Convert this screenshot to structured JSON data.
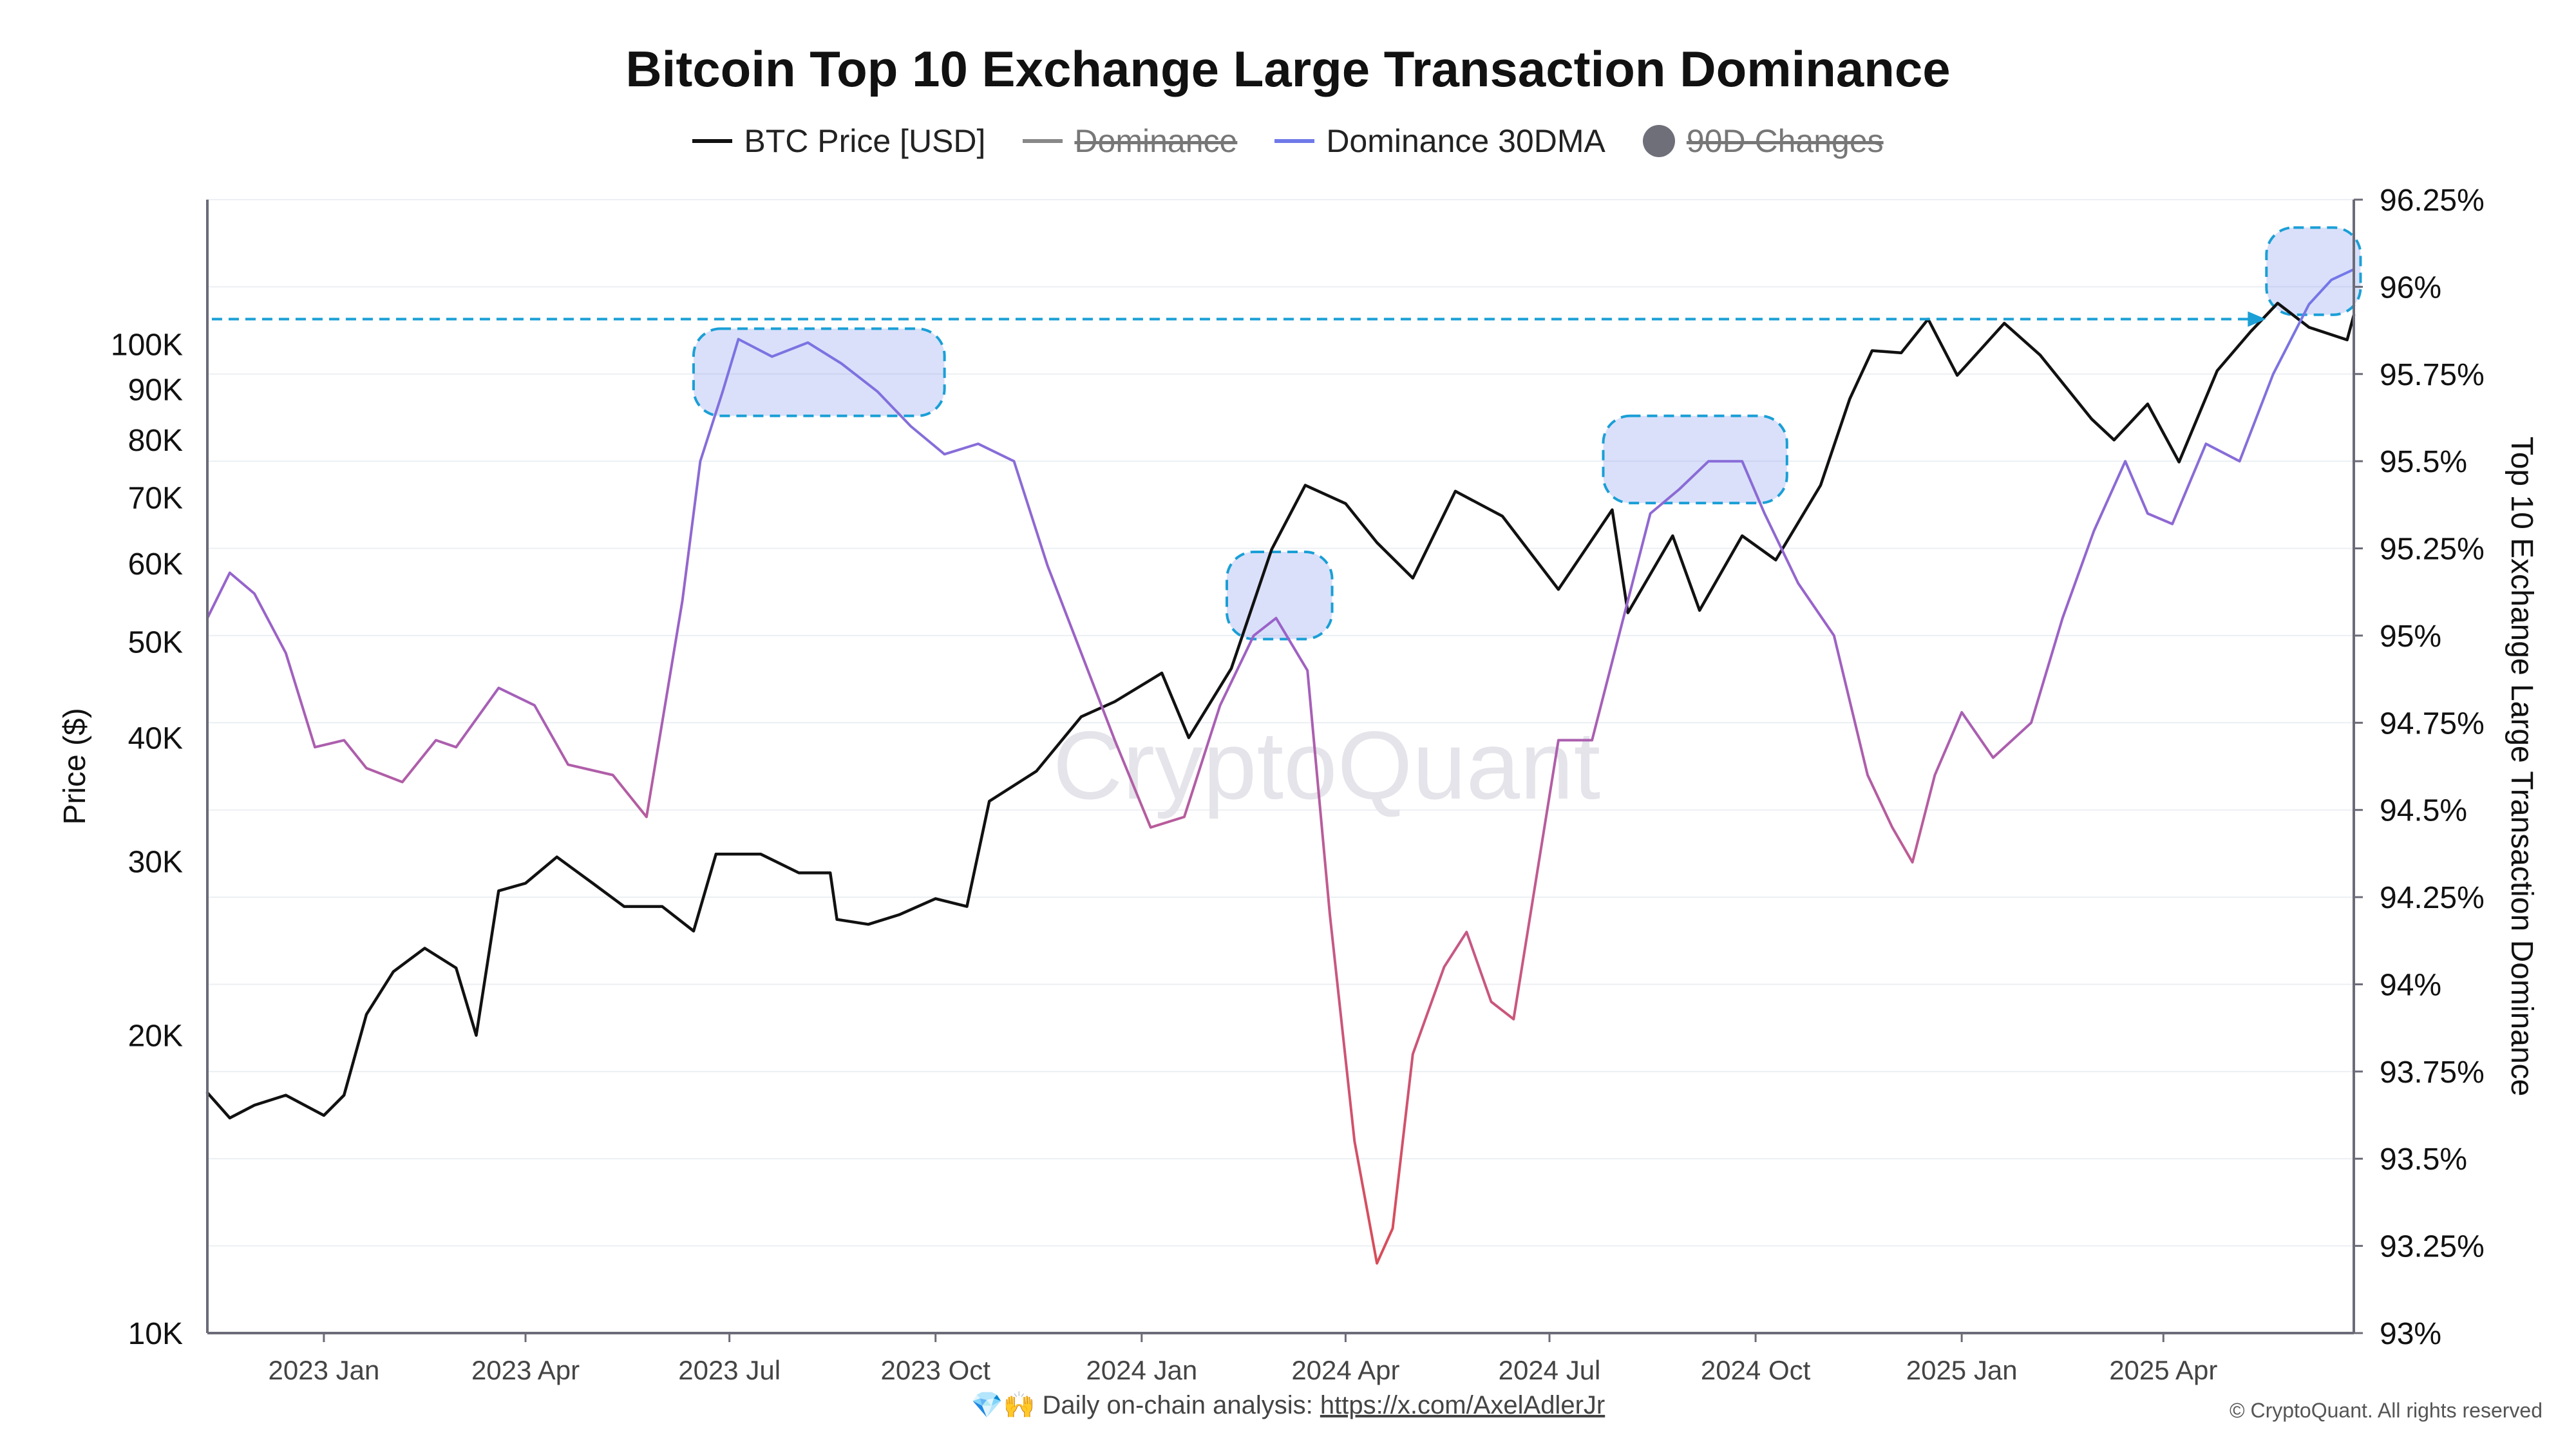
{
  "title": "Bitcoin Top 10 Exchange Large Transaction Dominance",
  "legend": [
    {
      "label": "BTC Price [USD]",
      "color": "#111111",
      "type": "line",
      "struck": false
    },
    {
      "label": "Dominance",
      "color": "#888888",
      "type": "line",
      "struck": true
    },
    {
      "label": "Dominance 30DMA",
      "color": "#6f79e8",
      "type": "line",
      "struck": false
    },
    {
      "label": "90D Changes",
      "color": "#6f6f7a",
      "type": "dot",
      "struck": true
    }
  ],
  "watermark": "CryptoQuant",
  "footer": {
    "emoji": "💎🙌",
    "text": "Daily on-chain analysis:",
    "link": "https://x.com/AxelAdlerJr"
  },
  "copyright": "© CryptoQuant. All rights reserved",
  "chart_data": {
    "type": "line",
    "x_tick_labels": [
      "2023 Jan",
      "2023 Apr",
      "2023 Jul",
      "2023 Oct",
      "2024 Jan",
      "2024 Apr",
      "2024 Jul",
      "2024 Oct",
      "2025 Jan",
      "2025 Apr"
    ],
    "y_left": {
      "label": "Price ($)",
      "scale": "log",
      "range": [
        10000,
        140000
      ],
      "tick_values": [
        10000,
        20000,
        30000,
        40000,
        50000,
        60000,
        70000,
        80000,
        90000,
        100000
      ],
      "tick_labels": [
        "10K",
        "20K",
        "30K",
        "40K",
        "50K",
        "60K",
        "70K",
        "80K",
        "90K",
        "100K"
      ]
    },
    "y_right": {
      "label": "Top 10 Exchange Large Transaction Dominance",
      "range": [
        93,
        96.25
      ],
      "tick_values": [
        93,
        93.25,
        93.5,
        93.75,
        94,
        94.25,
        94.5,
        94.75,
        95,
        95.25,
        95.5,
        95.75,
        96,
        96.25
      ],
      "tick_labels": [
        "93%",
        "93.25%",
        "93.5%",
        "93.75%",
        "94%",
        "94.25%",
        "94.5%",
        "94.75%",
        "95%",
        "95.25%",
        "95.5%",
        "95.75%",
        "96%",
        "96.25%"
      ]
    },
    "x_range": [
      "2022-11-10",
      "2025-06-25"
    ],
    "series": [
      {
        "name": "BTC Price [USD]",
        "axis": "left",
        "color": "#111111",
        "points": [
          [
            "2022-11-10",
            17500
          ],
          [
            "2022-11-20",
            16500
          ],
          [
            "2022-12-01",
            17000
          ],
          [
            "2022-12-15",
            17400
          ],
          [
            "2023-01-01",
            16600
          ],
          [
            "2023-01-10",
            17400
          ],
          [
            "2023-01-20",
            21000
          ],
          [
            "2023-02-01",
            23200
          ],
          [
            "2023-02-15",
            24500
          ],
          [
            "2023-03-01",
            23400
          ],
          [
            "2023-03-10",
            20000
          ],
          [
            "2023-03-20",
            28000
          ],
          [
            "2023-04-01",
            28500
          ],
          [
            "2023-04-15",
            30300
          ],
          [
            "2023-05-01",
            28500
          ],
          [
            "2023-05-15",
            27000
          ],
          [
            "2023-06-01",
            27000
          ],
          [
            "2023-06-15",
            25500
          ],
          [
            "2023-06-25",
            30500
          ],
          [
            "2023-07-15",
            30500
          ],
          [
            "2023-08-01",
            29200
          ],
          [
            "2023-08-15",
            29200
          ],
          [
            "2023-08-18",
            26200
          ],
          [
            "2023-09-01",
            25900
          ],
          [
            "2023-09-15",
            26500
          ],
          [
            "2023-10-01",
            27500
          ],
          [
            "2023-10-15",
            27000
          ],
          [
            "2023-10-25",
            34500
          ],
          [
            "2023-11-15",
            37000
          ],
          [
            "2023-12-05",
            42000
          ],
          [
            "2023-12-20",
            43500
          ],
          [
            "2024-01-10",
            46500
          ],
          [
            "2024-01-22",
            40000
          ],
          [
            "2024-02-10",
            47000
          ],
          [
            "2024-02-28",
            62000
          ],
          [
            "2024-03-14",
            72000
          ],
          [
            "2024-04-01",
            69000
          ],
          [
            "2024-04-15",
            63000
          ],
          [
            "2024-05-01",
            58000
          ],
          [
            "2024-05-20",
            71000
          ],
          [
            "2024-06-10",
            67000
          ],
          [
            "2024-07-05",
            56500
          ],
          [
            "2024-07-29",
            68000
          ],
          [
            "2024-08-05",
            53500
          ],
          [
            "2024-08-25",
            64000
          ],
          [
            "2024-09-06",
            53800
          ],
          [
            "2024-09-25",
            64000
          ],
          [
            "2024-10-10",
            60500
          ],
          [
            "2024-10-30",
            72000
          ],
          [
            "2024-11-12",
            88000
          ],
          [
            "2024-11-22",
            98500
          ],
          [
            "2024-12-05",
            98000
          ],
          [
            "2024-12-17",
            106000
          ],
          [
            "2024-12-30",
            93000
          ],
          [
            "2025-01-20",
            105000
          ],
          [
            "2025-02-05",
            97500
          ],
          [
            "2025-02-28",
            84000
          ],
          [
            "2025-03-10",
            80000
          ],
          [
            "2025-03-25",
            87000
          ],
          [
            "2025-04-08",
            76000
          ],
          [
            "2025-04-25",
            94000
          ],
          [
            "2025-05-10",
            103000
          ],
          [
            "2025-05-22",
            110000
          ],
          [
            "2025-06-05",
            104000
          ],
          [
            "2025-06-22",
            101000
          ],
          [
            "2025-06-25",
            107000
          ]
        ]
      },
      {
        "name": "Dominance 30DMA",
        "axis": "right",
        "color": "#6f79e8",
        "points": [
          [
            "2022-11-10",
            95.05
          ],
          [
            "2022-11-20",
            95.18
          ],
          [
            "2022-12-01",
            95.12
          ],
          [
            "2022-12-15",
            94.95
          ],
          [
            "2022-12-28",
            94.68
          ],
          [
            "2023-01-10",
            94.7
          ],
          [
            "2023-01-20",
            94.62
          ],
          [
            "2023-02-05",
            94.58
          ],
          [
            "2023-02-20",
            94.7
          ],
          [
            "2023-03-01",
            94.68
          ],
          [
            "2023-03-20",
            94.85
          ],
          [
            "2023-04-05",
            94.8
          ],
          [
            "2023-04-20",
            94.63
          ],
          [
            "2023-05-10",
            94.6
          ],
          [
            "2023-05-25",
            94.48
          ],
          [
            "2023-06-10",
            95.1
          ],
          [
            "2023-06-18",
            95.5
          ],
          [
            "2023-06-28",
            95.7
          ],
          [
            "2023-07-05",
            95.85
          ],
          [
            "2023-07-20",
            95.8
          ],
          [
            "2023-08-05",
            95.84
          ],
          [
            "2023-08-20",
            95.78
          ],
          [
            "2023-09-05",
            95.7
          ],
          [
            "2023-09-20",
            95.6
          ],
          [
            "2023-10-05",
            95.52
          ],
          [
            "2023-10-20",
            95.55
          ],
          [
            "2023-11-05",
            95.5
          ],
          [
            "2023-11-20",
            95.2
          ],
          [
            "2023-12-05",
            94.95
          ],
          [
            "2023-12-20",
            94.7
          ],
          [
            "2024-01-05",
            94.45
          ],
          [
            "2024-01-20",
            94.48
          ],
          [
            "2024-02-05",
            94.8
          ],
          [
            "2024-02-20",
            95.0
          ],
          [
            "2024-03-01",
            95.05
          ],
          [
            "2024-03-15",
            94.9
          ],
          [
            "2024-03-25",
            94.2
          ],
          [
            "2024-04-05",
            93.55
          ],
          [
            "2024-04-15",
            93.2
          ],
          [
            "2024-04-22",
            93.3
          ],
          [
            "2024-05-01",
            93.8
          ],
          [
            "2024-05-15",
            94.05
          ],
          [
            "2024-05-25",
            94.15
          ],
          [
            "2024-06-05",
            93.95
          ],
          [
            "2024-06-15",
            93.9
          ],
          [
            "2024-06-25",
            94.3
          ],
          [
            "2024-07-05",
            94.7
          ],
          [
            "2024-07-20",
            94.7
          ],
          [
            "2024-08-01",
            95.0
          ],
          [
            "2024-08-15",
            95.35
          ],
          [
            "2024-08-28",
            95.42
          ],
          [
            "2024-09-10",
            95.5
          ],
          [
            "2024-09-25",
            95.5
          ],
          [
            "2024-10-05",
            95.35
          ],
          [
            "2024-10-20",
            95.15
          ],
          [
            "2024-11-05",
            95.0
          ],
          [
            "2024-11-20",
            94.6
          ],
          [
            "2024-12-01",
            94.45
          ],
          [
            "2024-12-10",
            94.35
          ],
          [
            "2024-12-20",
            94.6
          ],
          [
            "2025-01-01",
            94.78
          ],
          [
            "2025-01-15",
            94.65
          ],
          [
            "2025-02-01",
            94.75
          ],
          [
            "2025-02-15",
            95.05
          ],
          [
            "2025-03-01",
            95.3
          ],
          [
            "2025-03-15",
            95.5
          ],
          [
            "2025-03-25",
            95.35
          ],
          [
            "2025-04-05",
            95.32
          ],
          [
            "2025-04-20",
            95.55
          ],
          [
            "2025-05-05",
            95.5
          ],
          [
            "2025-05-20",
            95.75
          ],
          [
            "2025-06-05",
            95.95
          ],
          [
            "2025-06-15",
            96.02
          ],
          [
            "2025-06-25",
            96.05
          ]
        ]
      }
    ],
    "reference_lines": [
      {
        "type": "arrow",
        "axis": "left",
        "value": 106000,
        "from": "2022-11-12",
        "to": "2025-05-15",
        "color": "#1a9fd6"
      }
    ],
    "highlight_boxes": [
      {
        "from": "2023-06-15",
        "to": "2023-10-05",
        "y_top": 95.88,
        "y_bottom": 95.63
      },
      {
        "from": "2024-02-08",
        "to": "2024-03-26",
        "y_top": 95.24,
        "y_bottom": 94.99
      },
      {
        "from": "2024-07-25",
        "to": "2024-10-15",
        "y_top": 95.63,
        "y_bottom": 95.38
      },
      {
        "from": "2025-05-17",
        "to": "2025-06-28",
        "y_top": 96.17,
        "y_bottom": 95.92
      }
    ],
    "grid": true,
    "legend_position": "top-center"
  }
}
